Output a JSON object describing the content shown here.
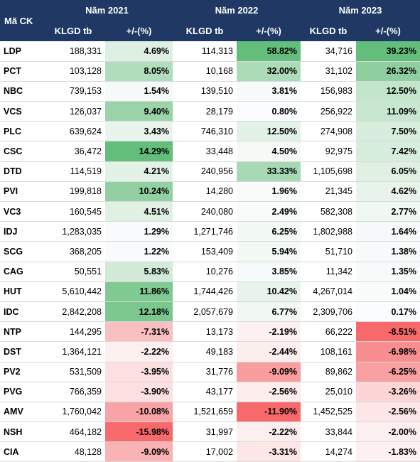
{
  "header": {
    "code_label": "Mã CK",
    "years": [
      "Năm 2021",
      "Năm 2022",
      "Năm 2023"
    ],
    "vol_label": "KLGD tb",
    "chg_label": "+/-(%)"
  },
  "rows": [
    {
      "code": "LDP",
      "v1": "188,331",
      "p1": "4.69%",
      "c1": "#ddf0e1",
      "v2": "114,313",
      "p2": "58.82%",
      "c2": "#63be7b",
      "v3": "34,716",
      "p3": "39.23%",
      "c3": "#63be7b"
    },
    {
      "code": "PCT",
      "v1": "103,128",
      "p1": "8.05%",
      "c1": "#b0ddbb",
      "v2": "10,168",
      "p2": "32.00%",
      "c2": "#acdbb8",
      "v3": "31,102",
      "p3": "26.32%",
      "c3": "#8fcf9f"
    },
    {
      "code": "NBC",
      "v1": "739,153",
      "p1": "1.54%",
      "c1": "#f6f9f9",
      "v2": "139,510",
      "p2": "3.81%",
      "c2": "#f7fafa",
      "v3": "156,983",
      "p3": "12.50%",
      "c3": "#c2e5cb"
    },
    {
      "code": "VCS",
      "v1": "126,037",
      "p1": "9.40%",
      "c1": "#9bd4a9",
      "v2": "28,179",
      "p2": "0.80%",
      "c2": "#fbfcfd",
      "v3": "256,922",
      "p3": "11.09%",
      "c3": "#c8e7d0"
    },
    {
      "code": "PLC",
      "v1": "639,624",
      "p1": "3.43%",
      "c1": "#e9f5ec",
      "v2": "746,310",
      "p2": "12.50%",
      "c2": "#e3f2e7",
      "v3": "274,908",
      "p3": "7.50%",
      "c3": "#d8eedd"
    },
    {
      "code": "CSC",
      "v1": "36,472",
      "p1": "14.29%",
      "c1": "#63be7b",
      "v2": "33,448",
      "p2": "4.50%",
      "c2": "#f5faf7",
      "v3": "92,975",
      "p3": "7.42%",
      "c3": "#d8eedd"
    },
    {
      "code": "DTD",
      "v1": "114,519",
      "p1": "4.21%",
      "c1": "#e2f2e6",
      "v2": "240,956",
      "p2": "33.33%",
      "c2": "#a8d9b5",
      "v3": "1,105,698",
      "p3": "6.05%",
      "c3": "#e0f1e4"
    },
    {
      "code": "PVI",
      "v1": "199,818",
      "p1": "10.24%",
      "c1": "#92d0a1",
      "v2": "14,280",
      "p2": "1.96%",
      "c2": "#fafcfc",
      "v3": "21,345",
      "p3": "4.62%",
      "c3": "#e8f4eb"
    },
    {
      "code": "VC3",
      "v1": "160,545",
      "p1": "4.51%",
      "c1": "#e0f1e4",
      "v2": "240,080",
      "p2": "2.49%",
      "c2": "#f9fbfb",
      "v3": "582,308",
      "p3": "2.77%",
      "c3": "#f0f8f2"
    },
    {
      "code": "IDJ",
      "v1": "1,283,035",
      "p1": "1.29%",
      "c1": "#f8fafb",
      "v2": "1,271,746",
      "p2": "6.25%",
      "c2": "#f2f8f4",
      "v3": "1,802,988",
      "p3": "1.64%",
      "c3": "#f6f9f9"
    },
    {
      "code": "SCG",
      "v1": "368,205",
      "p1": "1.22%",
      "c1": "#f8fafb",
      "v2": "153,409",
      "p2": "5.94%",
      "c2": "#f3f9f5",
      "v3": "51,710",
      "p3": "1.38%",
      "c3": "#f7fafa"
    },
    {
      "code": "CAG",
      "v1": "50,551",
      "p1": "5.83%",
      "c1": "#d1ebd8",
      "v2": "10,276",
      "p2": "3.85%",
      "c2": "#f7fafa",
      "v3": "11,342",
      "p3": "1.35%",
      "c3": "#f7fafa"
    },
    {
      "code": "HUT",
      "v1": "5,610,442",
      "p1": "11.86%",
      "c1": "#7fc992",
      "v2": "1,744,426",
      "p2": "10.42%",
      "c2": "#e8f4eb",
      "v3": "4,267,014",
      "p3": "1.04%",
      "c3": "#f9fbfb"
    },
    {
      "code": "IDC",
      "v1": "2,842,208",
      "p1": "12.18%",
      "c1": "#7bc78e",
      "v2": "2,057,679",
      "p2": "6.77%",
      "c2": "#f1f8f3",
      "v3": "2,309,706",
      "p3": "0.17%",
      "c3": "#fbfcfd"
    },
    {
      "code": "NTP",
      "v1": "144,295",
      "p1": "-7.31%",
      "c1": "#f9c0c2",
      "v2": "13,173",
      "p2": "-2.19%",
      "c2": "#fdf0f0",
      "v3": "66,222",
      "p3": "-8.51%",
      "c3": "#f8696b"
    },
    {
      "code": "DST",
      "v1": "1,364,121",
      "p1": "-2.22%",
      "c1": "#fdeff0",
      "v2": "49,183",
      "p2": "-2.44%",
      "c2": "#fdeeee",
      "v3": "108,161",
      "p3": "-6.98%",
      "c3": "#f98e90"
    },
    {
      "code": "PV2",
      "v1": "531,509",
      "p1": "-3.95%",
      "c1": "#fce0e1",
      "v2": "31,776",
      "p2": "-9.09%",
      "c2": "#f99d9f",
      "v3": "89,862",
      "p3": "-6.25%",
      "c3": "#f9a0a2"
    },
    {
      "code": "PVG",
      "v1": "766,359",
      "p1": "-3.90%",
      "c1": "#fce1e1",
      "v2": "43,177",
      "p2": "-2.56%",
      "c2": "#fdeded",
      "v3": "25,010",
      "p3": "-3.26%",
      "c3": "#fcd6d7"
    },
    {
      "code": "AMV",
      "v1": "1,760,042",
      "p1": "-10.08%",
      "c1": "#f8a3a5",
      "v2": "1,521,659",
      "p2": "-11.90%",
      "c2": "#f8696b",
      "v3": "1,452,525",
      "p3": "-2.56%",
      "c3": "#fde6e7"
    },
    {
      "code": "NSH",
      "v1": "464,182",
      "p1": "-15.98%",
      "c1": "#f8696b",
      "v2": "31,997",
      "p2": "-2.22%",
      "c2": "#fdefef",
      "v3": "33,844",
      "p3": "-2.00%",
      "c3": "#fdeeef"
    },
    {
      "code": "CIA",
      "v1": "48,128",
      "p1": "-9.09%",
      "c1": "#f9b3b5",
      "v2": "17,002",
      "p2": "-3.31%",
      "c2": "#fce6e6",
      "v3": "14,274",
      "p3": "-1.83%",
      "c3": "#fef0f0"
    }
  ]
}
